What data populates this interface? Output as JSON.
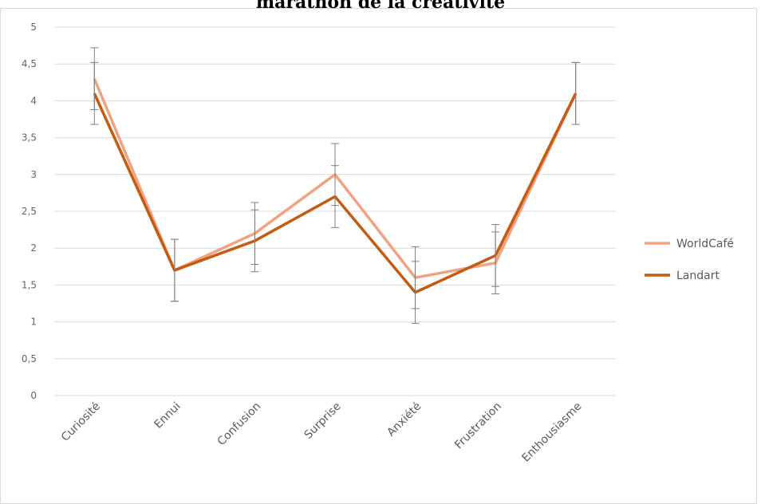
{
  "chart_data": {
    "type": "line",
    "title": "marathon de la créativité",
    "categories": [
      "Curiosité",
      "Ennui",
      "Confusion",
      "Surprise",
      "Anxiété",
      "Frustration",
      "Enthousiasme"
    ],
    "series": [
      {
        "name": "WorldCafé",
        "values": [
          4.3,
          1.7,
          2.2,
          3.0,
          1.6,
          1.8,
          4.1
        ],
        "error": [
          0.42,
          0.42,
          0.42,
          0.42,
          0.42,
          0.42,
          0.42
        ],
        "color": "#F0A283"
      },
      {
        "name": "Landart",
        "values": [
          4.1,
          1.7,
          2.1,
          2.7,
          1.4,
          1.9,
          4.1
        ],
        "error": [
          0.42,
          0.42,
          0.42,
          0.42,
          0.42,
          0.42,
          0.42
        ],
        "color": "#C55A11"
      }
    ],
    "ylim": [
      0,
      5
    ],
    "yticks": [
      "0",
      "0,5",
      "1",
      "1,5",
      "2",
      "2,5",
      "3",
      "3,5",
      "4",
      "4,5",
      "5"
    ],
    "grid": true,
    "legend": "right"
  }
}
